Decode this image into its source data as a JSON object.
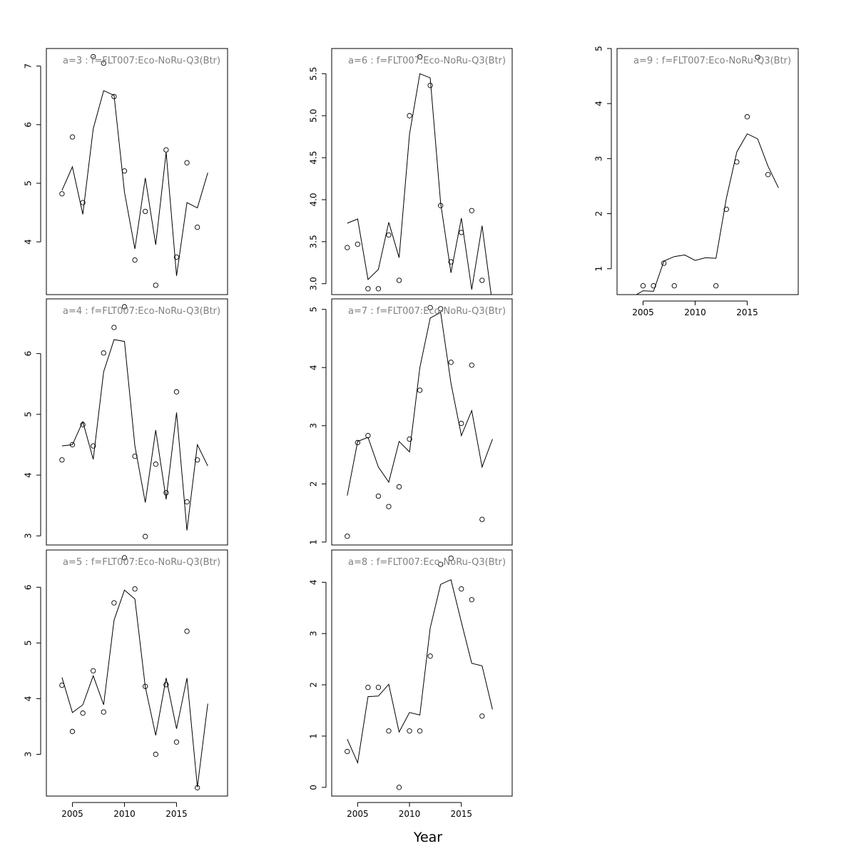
{
  "xlabel": "Year",
  "chart_data": [
    {
      "type": "line",
      "title": "a=3  :  f=FLT007:Eco-NoRu-Q3(Btr)",
      "xlabel": "",
      "ylabel": "",
      "xlim": [
        2002.5,
        2019.9
      ],
      "ylim": [
        3.1,
        7.3
      ],
      "yticks": [
        4,
        5,
        6,
        7
      ],
      "xticks": [],
      "series": [
        {
          "values": [
            [
              2004,
              4.88
            ],
            [
              2005,
              5.28
            ],
            [
              2006,
              4.47
            ],
            [
              2007,
              5.93
            ],
            [
              2008,
              6.58
            ],
            [
              2009,
              6.5
            ],
            [
              2010,
              4.85
            ],
            [
              2011,
              3.88
            ],
            [
              2012,
              5.09
            ],
            [
              2013,
              3.95
            ],
            [
              2014,
              5.53
            ],
            [
              2015,
              3.42
            ],
            [
              2016,
              4.67
            ],
            [
              2017,
              4.58
            ],
            [
              2018,
              5.18
            ]
          ]
        },
        {
          "values": [
            [
              2004,
              4.82
            ],
            [
              2005,
              5.79
            ],
            [
              2006,
              4.67
            ],
            [
              2007,
              7.16
            ],
            [
              2008,
              7.05
            ],
            [
              2009,
              6.48
            ],
            [
              2010,
              5.21
            ],
            [
              2011,
              3.69
            ],
            [
              2012,
              4.52
            ],
            [
              2013,
              3.26
            ],
            [
              2014,
              5.57
            ],
            [
              2015,
              3.74
            ],
            [
              2016,
              5.35
            ],
            [
              2017,
              4.25
            ]
          ]
        }
      ]
    },
    {
      "type": "line",
      "title": "a=4  :  f=FLT007:Eco-NoRu-Q3(Btr)",
      "xlabel": "",
      "ylabel": "",
      "xlim": [
        2002.5,
        2019.9
      ],
      "ylim": [
        2.85,
        6.9
      ],
      "yticks": [
        3,
        4,
        5,
        6
      ],
      "xticks": [],
      "series": [
        {
          "values": [
            [
              2004,
              4.48
            ],
            [
              2005,
              4.5
            ],
            [
              2006,
              4.88
            ],
            [
              2007,
              4.26
            ],
            [
              2008,
              5.7
            ],
            [
              2009,
              6.23
            ],
            [
              2010,
              6.2
            ],
            [
              2011,
              4.48
            ],
            [
              2012,
              3.55
            ],
            [
              2013,
              4.74
            ],
            [
              2014,
              3.6
            ],
            [
              2015,
              5.03
            ],
            [
              2016,
              3.09
            ],
            [
              2017,
              4.5
            ],
            [
              2018,
              4.15
            ]
          ]
        },
        {
          "values": [
            [
              2004,
              4.25
            ],
            [
              2005,
              4.5
            ],
            [
              2006,
              4.83
            ],
            [
              2007,
              4.48
            ],
            [
              2008,
              6.01
            ],
            [
              2009,
              6.43
            ],
            [
              2010,
              6.77
            ],
            [
              2011,
              4.31
            ],
            [
              2012,
              2.99
            ],
            [
              2013,
              4.18
            ],
            [
              2014,
              3.71
            ],
            [
              2015,
              5.37
            ],
            [
              2016,
              3.56
            ],
            [
              2017,
              4.25
            ]
          ]
        }
      ]
    },
    {
      "type": "line",
      "title": "a=5  :  f=FLT007:Eco-NoRu-Q3(Btr)",
      "xlabel": "",
      "ylabel": "",
      "xlim": [
        2002.5,
        2019.9
      ],
      "ylim": [
        2.25,
        6.67
      ],
      "yticks": [
        3,
        4,
        5,
        6
      ],
      "xticks": [
        2005,
        2010,
        2015
      ],
      "series": [
        {
          "values": [
            [
              2004,
              4.38
            ],
            [
              2005,
              3.75
            ],
            [
              2006,
              3.89
            ],
            [
              2007,
              4.41
            ],
            [
              2008,
              3.89
            ],
            [
              2009,
              5.41
            ],
            [
              2010,
              5.95
            ],
            [
              2011,
              5.79
            ],
            [
              2012,
              4.21
            ],
            [
              2013,
              3.34
            ],
            [
              2014,
              4.37
            ],
            [
              2015,
              3.46
            ],
            [
              2016,
              4.37
            ],
            [
              2017,
              2.41
            ],
            [
              2018,
              3.91
            ]
          ]
        },
        {
          "values": [
            [
              2004,
              4.24
            ],
            [
              2005,
              3.41
            ],
            [
              2006,
              3.74
            ],
            [
              2007,
              4.5
            ],
            [
              2008,
              3.76
            ],
            [
              2009,
              5.72
            ],
            [
              2010,
              6.53
            ],
            [
              2011,
              5.97
            ],
            [
              2012,
              4.22
            ],
            [
              2013,
              3.0
            ],
            [
              2014,
              4.25
            ],
            [
              2015,
              3.22
            ],
            [
              2016,
              5.21
            ],
            [
              2017,
              2.4
            ]
          ]
        }
      ]
    },
    {
      "type": "line",
      "title": "a=6  :  f=FLT007:Eco-NoRu-Q3(Btr)",
      "xlabel": "",
      "ylabel": "",
      "xlim": [
        2002.5,
        2019.9
      ],
      "ylim": [
        2.87,
        5.8
      ],
      "yticks": [
        3.0,
        3.5,
        4.0,
        4.5,
        5.0,
        5.5
      ],
      "xticks": [],
      "series": [
        {
          "values": [
            [
              2004,
              3.72
            ],
            [
              2005,
              3.77
            ],
            [
              2006,
              3.05
            ],
            [
              2007,
              3.17
            ],
            [
              2008,
              3.73
            ],
            [
              2009,
              3.31
            ],
            [
              2010,
              4.78
            ],
            [
              2011,
              5.5
            ],
            [
              2012,
              5.45
            ],
            [
              2013,
              3.96
            ],
            [
              2014,
              3.13
            ],
            [
              2015,
              3.78
            ],
            [
              2016,
              2.93
            ],
            [
              2017,
              3.69
            ],
            [
              2018,
              2.75
            ]
          ]
        },
        {
          "values": [
            [
              2004,
              3.43
            ],
            [
              2005,
              3.47
            ],
            [
              2006,
              2.94
            ],
            [
              2007,
              2.94
            ],
            [
              2008,
              3.58
            ],
            [
              2009,
              3.04
            ],
            [
              2010,
              5.0
            ],
            [
              2011,
              5.7
            ],
            [
              2012,
              5.36
            ],
            [
              2013,
              3.93
            ],
            [
              2014,
              3.26
            ],
            [
              2015,
              3.61
            ],
            [
              2016,
              3.87
            ],
            [
              2017,
              3.04
            ]
          ]
        }
      ]
    },
    {
      "type": "line",
      "title": "a=7  :  f=FLT007:Eco-NoRu-Q3(Btr)",
      "xlabel": "",
      "ylabel": "",
      "xlim": [
        2002.5,
        2019.9
      ],
      "ylim": [
        0.95,
        5.18
      ],
      "yticks": [
        1,
        2,
        3,
        4,
        5
      ],
      "xticks": [],
      "series": [
        {
          "values": [
            [
              2004,
              1.8
            ],
            [
              2005,
              2.73
            ],
            [
              2006,
              2.8
            ],
            [
              2007,
              2.29
            ],
            [
              2008,
              2.03
            ],
            [
              2009,
              2.73
            ],
            [
              2010,
              2.55
            ],
            [
              2011,
              4.0
            ],
            [
              2012,
              4.85
            ],
            [
              2013,
              4.95
            ],
            [
              2014,
              3.73
            ],
            [
              2015,
              2.83
            ],
            [
              2016,
              3.26
            ],
            [
              2017,
              2.29
            ],
            [
              2018,
              2.77
            ]
          ]
        },
        {
          "values": [
            [
              2004,
              1.1
            ],
            [
              2005,
              2.71
            ],
            [
              2006,
              2.83
            ],
            [
              2007,
              1.79
            ],
            [
              2008,
              1.61
            ],
            [
              2009,
              1.95
            ],
            [
              2010,
              2.77
            ],
            [
              2011,
              3.61
            ],
            [
              2012,
              5.03
            ],
            [
              2013,
              5.01
            ],
            [
              2014,
              4.09
            ],
            [
              2015,
              3.04
            ],
            [
              2016,
              4.04
            ],
            [
              2017,
              1.39
            ]
          ]
        }
      ]
    },
    {
      "type": "line",
      "title": "a=8  :  f=FLT007:Eco-NoRu-Q3(Btr)",
      "xlabel": "",
      "ylabel": "",
      "xlim": [
        2002.5,
        2019.9
      ],
      "ylim": [
        -0.17,
        4.63
      ],
      "yticks": [
        0,
        1,
        2,
        3,
        4
      ],
      "xticks": [
        2005,
        2010,
        2015
      ],
      "series": [
        {
          "values": [
            [
              2004,
              0.94
            ],
            [
              2005,
              0.48
            ],
            [
              2006,
              1.77
            ],
            [
              2007,
              1.78
            ],
            [
              2008,
              2.01
            ],
            [
              2009,
              1.08
            ],
            [
              2010,
              1.46
            ],
            [
              2011,
              1.41
            ],
            [
              2012,
              3.11
            ],
            [
              2013,
              3.96
            ],
            [
              2014,
              4.05
            ],
            [
              2015,
              3.22
            ],
            [
              2016,
              2.42
            ],
            [
              2017,
              2.37
            ],
            [
              2018,
              1.52
            ]
          ]
        },
        {
          "values": [
            [
              2004,
              0.7
            ],
            [
              2005,
              null
            ],
            [
              2006,
              1.95
            ],
            [
              2007,
              1.95
            ],
            [
              2008,
              1.1
            ],
            [
              2009,
              0.0
            ],
            [
              2010,
              1.1
            ],
            [
              2011,
              1.1
            ],
            [
              2012,
              2.56
            ],
            [
              2013,
              4.35
            ],
            [
              2014,
              4.47
            ],
            [
              2015,
              3.87
            ],
            [
              2016,
              3.66
            ],
            [
              2017,
              1.39
            ]
          ]
        }
      ]
    },
    {
      "type": "line",
      "title": "a=9  :  f=FLT007:Eco-NoRu-Q3(Btr)",
      "xlabel": "",
      "ylabel": "",
      "xlim": [
        2002.5,
        2019.9
      ],
      "ylim": [
        0.53,
        5.0
      ],
      "yticks": [
        1,
        2,
        3,
        4,
        5
      ],
      "xticks": [
        2005,
        2010,
        2015
      ],
      "series": [
        {
          "values": [
            [
              2004,
              0.49
            ],
            [
              2005,
              0.6
            ],
            [
              2006,
              0.59
            ],
            [
              2007,
              1.14
            ],
            [
              2008,
              1.22
            ],
            [
              2009,
              1.25
            ],
            [
              2010,
              1.15
            ],
            [
              2011,
              1.2
            ],
            [
              2012,
              1.19
            ],
            [
              2013,
              2.28
            ],
            [
              2014,
              3.12
            ],
            [
              2015,
              3.45
            ],
            [
              2016,
              3.36
            ],
            [
              2017,
              2.86
            ],
            [
              2018,
              2.47
            ]
          ]
        },
        {
          "values": [
            [
              2004,
              null
            ],
            [
              2005,
              0.69
            ],
            [
              2006,
              0.69
            ],
            [
              2007,
              1.1
            ],
            [
              2008,
              0.69
            ],
            [
              2009,
              null
            ],
            [
              2010,
              null
            ],
            [
              2011,
              null
            ],
            [
              2012,
              0.69
            ],
            [
              2013,
              2.08
            ],
            [
              2014,
              2.94
            ],
            [
              2015,
              3.76
            ],
            [
              2016,
              4.84
            ],
            [
              2017,
              2.71
            ]
          ]
        }
      ]
    }
  ]
}
